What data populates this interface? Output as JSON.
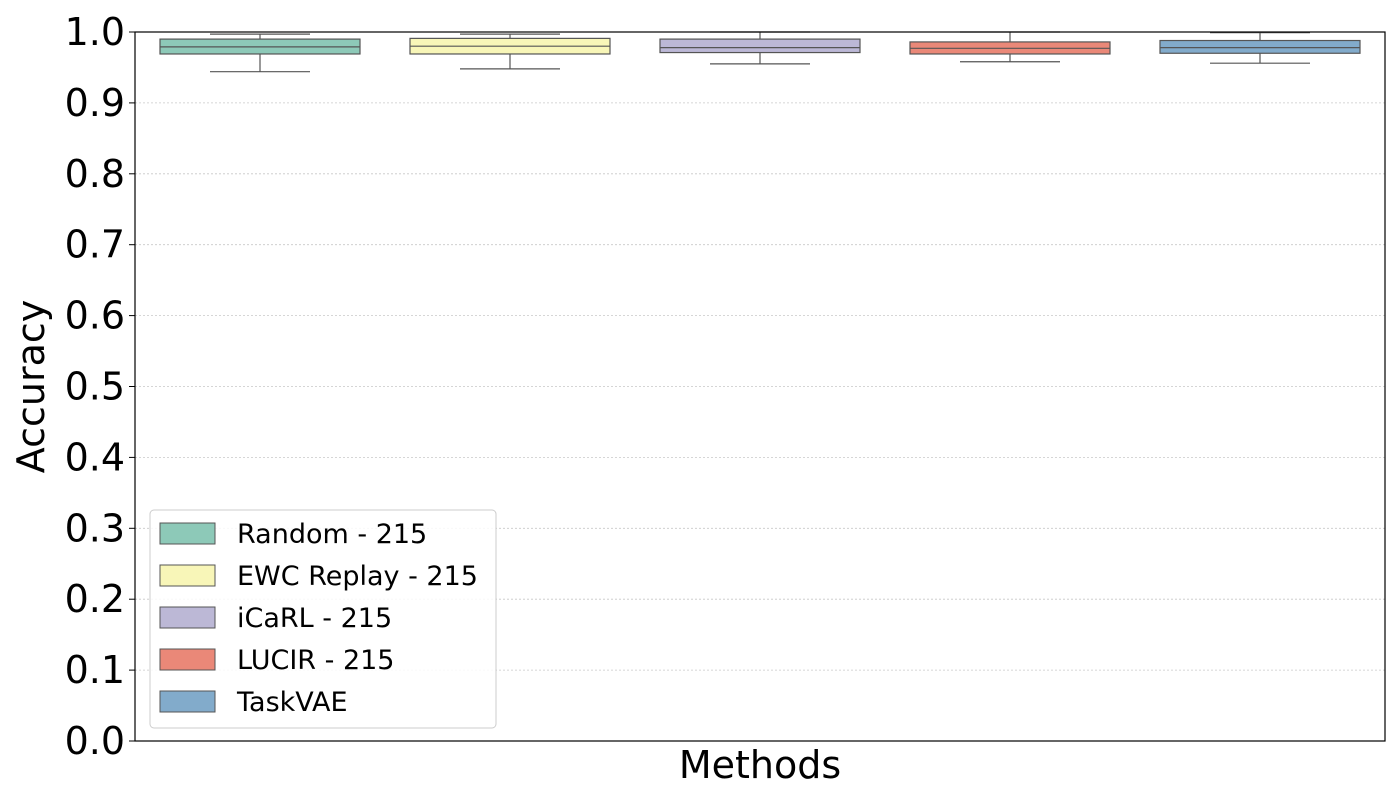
{
  "chart_data": {
    "type": "box",
    "title": "",
    "xlabel": "Methods",
    "ylabel": "Accuracy",
    "ylim": [
      0.0,
      1.0
    ],
    "yticks": [
      0.0,
      0.1,
      0.2,
      0.3,
      0.4,
      0.5,
      0.6,
      0.7,
      0.8,
      0.9,
      1.0
    ],
    "ytick_labels": [
      "0.0",
      "0.1",
      "0.2",
      "0.3",
      "0.4",
      "0.5",
      "0.6",
      "0.7",
      "0.8",
      "0.9",
      "1.0"
    ],
    "grid": "horizontal-dotted",
    "legend_position": "lower-left",
    "series": [
      {
        "name": "Random - 215",
        "color": "#8dc9b8",
        "whisker_low": 0.944,
        "q1": 0.969,
        "median": 0.979,
        "q3": 0.99,
        "whisker_high": 0.997
      },
      {
        "name": "EWC Replay - 215",
        "color": "#f8f6b8",
        "whisker_low": 0.948,
        "q1": 0.969,
        "median": 0.98,
        "q3": 0.991,
        "whisker_high": 0.997
      },
      {
        "name": "iCaRL - 215",
        "color": "#bcb8d6",
        "whisker_low": 0.955,
        "q1": 0.971,
        "median": 0.978,
        "q3": 0.99,
        "whisker_high": 1.0
      },
      {
        "name": "LUCIR - 215",
        "color": "#ea8878",
        "whisker_low": 0.958,
        "q1": 0.969,
        "median": 0.977,
        "q3": 0.986,
        "whisker_high": 1.0
      },
      {
        "name": "TaskVAE",
        "color": "#82abcb",
        "whisker_low": 0.956,
        "q1": 0.97,
        "median": 0.978,
        "q3": 0.988,
        "whisker_high": 0.999
      }
    ]
  }
}
